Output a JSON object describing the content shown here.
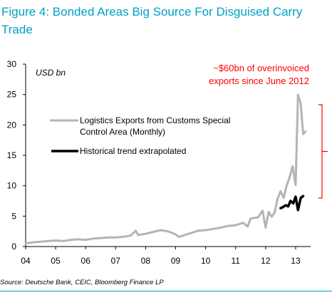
{
  "header": {
    "title": "Figure 4: Bonded Areas Big Source For Disguised Carry Trade",
    "source": "Source: Deutsche Bank, CEIC, Bloomberg Finance LP"
  },
  "chart_data": {
    "type": "line",
    "unit_label": "USD bn",
    "x_ticks": [
      "04",
      "05",
      "06",
      "07",
      "08",
      "09",
      "10",
      "11",
      "12",
      "13"
    ],
    "x_range": [
      2004.0,
      2013.5
    ],
    "ylim": [
      0,
      30
    ],
    "y_ticks": [
      0,
      5,
      10,
      15,
      20,
      25,
      30
    ],
    "grid": false,
    "legend_position": "top-left",
    "series": [
      {
        "name": "Logistics Exports from Customs Special Control Area (Monthly)",
        "color": "#b4b4b4",
        "x": [
          2004.0,
          2004.25,
          2004.5,
          2004.75,
          2005.0,
          2005.25,
          2005.5,
          2005.75,
          2006.0,
          2006.25,
          2006.5,
          2006.75,
          2007.0,
          2007.25,
          2007.5,
          2007.67,
          2007.75,
          2008.0,
          2008.25,
          2008.5,
          2008.75,
          2009.0,
          2009.1,
          2009.25,
          2009.5,
          2009.75,
          2010.0,
          2010.25,
          2010.5,
          2010.75,
          2011.0,
          2011.25,
          2011.4,
          2011.5,
          2011.75,
          2011.9,
          2012.0,
          2012.1,
          2012.2,
          2012.3,
          2012.4,
          2012.5,
          2012.6,
          2012.7,
          2012.8,
          2012.9,
          2013.0,
          2013.08,
          2013.17,
          2013.25,
          2013.33
        ],
        "values": [
          0.5,
          0.7,
          0.8,
          0.9,
          1.0,
          0.9,
          1.1,
          1.2,
          1.1,
          1.3,
          1.4,
          1.5,
          1.5,
          1.6,
          1.8,
          2.6,
          1.9,
          2.1,
          2.4,
          2.7,
          2.5,
          2.0,
          1.6,
          1.8,
          2.2,
          2.6,
          2.7,
          2.9,
          3.1,
          3.4,
          3.5,
          3.9,
          3.3,
          4.6,
          4.8,
          5.9,
          3.1,
          5.7,
          4.9,
          5.6,
          7.9,
          9.1,
          8.0,
          10.0,
          11.4,
          13.2,
          10.1,
          25.0,
          23.5,
          18.5,
          18.9
        ]
      },
      {
        "name": "Historical trend extrapolated",
        "color": "#000000",
        "x": [
          2012.5,
          2012.58,
          2012.67,
          2012.75,
          2012.83,
          2012.92,
          2013.0,
          2013.08,
          2013.17,
          2013.25
        ],
        "values": [
          6.3,
          6.5,
          6.8,
          6.6,
          7.5,
          7.1,
          8.2,
          6.0,
          8.0,
          8.3
        ]
      }
    ],
    "annotation": {
      "text_line1": "~$60bn of overinvoiced",
      "text_line2": "exports since June 2012",
      "color": "#ff0000"
    }
  }
}
